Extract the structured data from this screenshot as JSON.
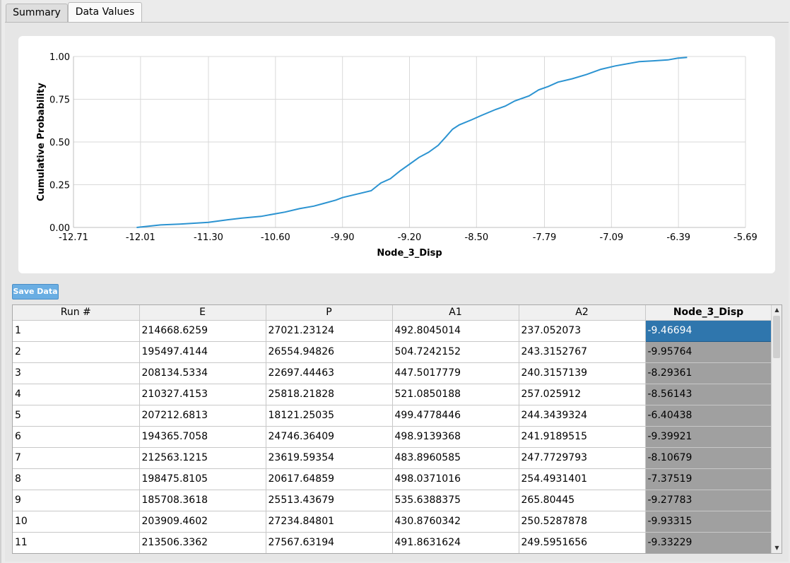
{
  "tabs": [
    {
      "label": "Summary"
    },
    {
      "label": "Data Values"
    }
  ],
  "chart_data": {
    "type": "line",
    "title": "",
    "xlabel": "Node_3_Disp",
    "ylabel": "Cumulative Probability",
    "xlim": [
      -12.71,
      -5.69
    ],
    "ylim": [
      0,
      1
    ],
    "x_ticks": [
      "-12.71",
      "-12.01",
      "-11.30",
      "-10.60",
      "-9.90",
      "-9.20",
      "-8.50",
      "-7.79",
      "-7.09",
      "-6.39",
      "-5.69"
    ],
    "y_ticks": [
      "0.00",
      "0.25",
      "0.50",
      "0.75",
      "1.00"
    ],
    "grid": true,
    "color": "#2b93d1",
    "series": [
      {
        "x": [
          -12.05,
          -11.8,
          -11.6,
          -11.3,
          -11.1,
          -10.95,
          -10.75,
          -10.6,
          -10.5,
          -10.35,
          -10.2,
          -10.1,
          -9.97,
          -9.9,
          -9.75,
          -9.6,
          -9.5,
          -9.4,
          -9.3,
          -9.2,
          -9.1,
          -9.0,
          -8.9,
          -8.82,
          -8.75,
          -8.68,
          -8.55,
          -8.45,
          -8.3,
          -8.2,
          -8.1,
          -7.95,
          -7.85,
          -7.75,
          -7.65,
          -7.5,
          -7.35,
          -7.2,
          -7.05,
          -6.9,
          -6.8,
          -6.65,
          -6.5,
          -6.4,
          -6.3
        ],
        "y": [
          0.0,
          0.015,
          0.02,
          0.03,
          0.045,
          0.055,
          0.065,
          0.08,
          0.09,
          0.11,
          0.125,
          0.14,
          0.16,
          0.175,
          0.195,
          0.215,
          0.26,
          0.285,
          0.33,
          0.37,
          0.41,
          0.44,
          0.48,
          0.53,
          0.575,
          0.6,
          0.63,
          0.655,
          0.69,
          0.71,
          0.74,
          0.77,
          0.805,
          0.825,
          0.85,
          0.87,
          0.895,
          0.925,
          0.945,
          0.96,
          0.97,
          0.975,
          0.98,
          0.99,
          0.995
        ]
      }
    ]
  },
  "save_button": {
    "label": "Save Data"
  },
  "table": {
    "columns": [
      "Run #",
      "E",
      "P",
      "A1",
      "A2",
      "Node_3_Disp"
    ],
    "rows": [
      [
        "1",
        "214668.6259",
        "27021.23124",
        "492.8045014",
        "237.052073",
        "-9.46694"
      ],
      [
        "2",
        "195497.4144",
        "26554.94826",
        "504.7242152",
        "243.3152767",
        "-9.95764"
      ],
      [
        "3",
        "208134.5334",
        "22697.44463",
        "447.5017779",
        "240.3157139",
        "-8.29361"
      ],
      [
        "4",
        "210327.4153",
        "25818.21828",
        "521.0850188",
        "257.025912",
        "-8.56143"
      ],
      [
        "5",
        "207212.6813",
        "18121.25035",
        "499.4778446",
        "244.3439324",
        "-6.40438"
      ],
      [
        "6",
        "194365.7058",
        "24746.36409",
        "498.9139368",
        "241.9189515",
        "-9.39921"
      ],
      [
        "7",
        "212563.1215",
        "23619.59354",
        "483.8960585",
        "247.7729793",
        "-8.10679"
      ],
      [
        "8",
        "198475.8105",
        "20617.64859",
        "498.0371016",
        "254.4931401",
        "-7.37519"
      ],
      [
        "9",
        "185708.3618",
        "25513.43679",
        "535.6388375",
        "265.80445",
        "-9.27783"
      ],
      [
        "10",
        "203909.4602",
        "27234.84801",
        "430.8760342",
        "250.5287878",
        "-9.93315"
      ],
      [
        "11",
        "213506.3362",
        "27567.63194",
        "491.8631624",
        "249.5951656",
        "-9.33229"
      ]
    ]
  }
}
